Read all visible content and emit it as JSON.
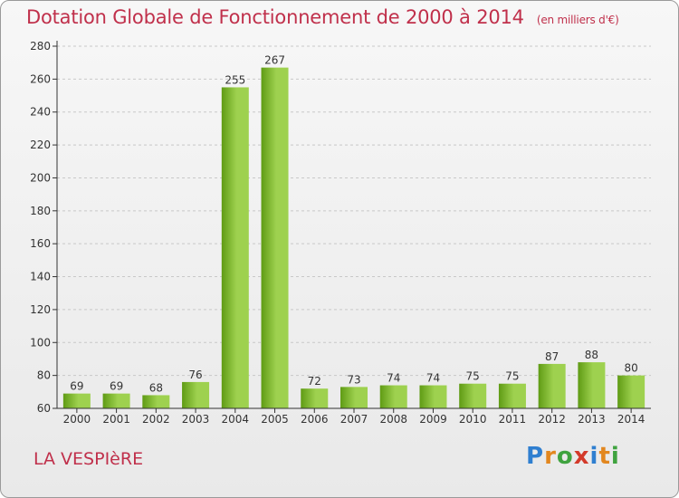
{
  "header": {
    "title": "Dotation Globale de Fonctionnement de 2000 à 2014",
    "subtitle": "(en milliers d'€)"
  },
  "footer": {
    "commune": "LA VESPIèRE",
    "logo_letters": [
      "P",
      "r",
      "o",
      "x",
      "i",
      "t",
      "i"
    ],
    "logo_colors": [
      "#2f7fd0",
      "#e2871f",
      "#3fa33f",
      "#d33a2a",
      "#2f7fd0",
      "#e2871f",
      "#3fa33f"
    ]
  },
  "colors": {
    "bar_light": "#9ed14f",
    "bar_dark": "#5f9b14",
    "axis": "#333333",
    "grid": "#c8c8c8"
  },
  "chart_data": {
    "type": "bar",
    "title": "Dotation Globale de Fonctionnement de 2000 à 2014",
    "xlabel": "",
    "ylabel": "",
    "categories": [
      "2000",
      "2001",
      "2002",
      "2003",
      "2004",
      "2005",
      "2006",
      "2007",
      "2008",
      "2009",
      "2010",
      "2011",
      "2012",
      "2013",
      "2014"
    ],
    "values": [
      69,
      69,
      68,
      76,
      255,
      267,
      72,
      73,
      74,
      74,
      75,
      75,
      87,
      88,
      80
    ],
    "ylim": [
      60,
      280
    ],
    "yticks": [
      60,
      80,
      100,
      120,
      140,
      160,
      180,
      200,
      220,
      240,
      260,
      280
    ],
    "grid": true
  }
}
